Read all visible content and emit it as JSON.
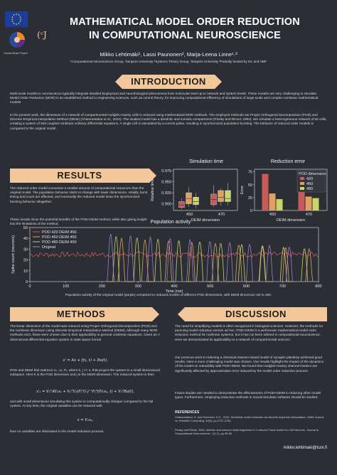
{
  "header": {
    "title_line1": "MATHEMATICAL MODEL ORDER REDUCTION",
    "title_line2": "IN COMPUTATIONAL NEUROSCIENCE",
    "authors": "Mikko Lehtimäki¹, Lassi Paunonen², Marja-Leena Linne¹˒³",
    "affiliations": "¹Computational Neuroscience Group, Tampere University ²Systems Theory Group, Tampere University ³Partially funded by EC and HBP",
    "hbp_logo_text": "Human Brain Project",
    "logo_mark": "(ᶜJ"
  },
  "introduction": {
    "heading": "INTRODUCTION",
    "p1": "Multi-scale models in neuroscience typically integrate detailed biophysical and neurobiological phenomena from molecular level up to network and system levels. These models are very challenging to simulate. Model Order Reduction (MOR) is an established method in engineering sciences, such as control theory, for improving computational efficiency of simulations of large-scale and complex nonlinear mathematical models.",
    "p2": "In the present work, the dimension of a network of compartmental Hodgkin-Huxley cells is reduced using mathematical MOR methods. The employed methods are Proper Orthogonal Decomposition (POD) and Discrete Empirical Interpolation Method (DEIM) (Chaturantabut et al., 2010). The studied model has a dendritic and somatic compartment (Pinsky and Rinzel, 1994). We simulate a heterogeneous network of 50 cells, creating a system of 500 coupled nonlinear ordinary differential equations. A single cell is stimulated by a current pulse, resulting in synchronized population bursting. The behavior of reduced order models is compared to the original model."
  },
  "results": {
    "heading": "RESULTS",
    "p1": "The reduced order model consumes a smaller amount of computational resources than the original model. The population behavior starts to change with lower dimensions. Initially, burst timing and count are affected, and eventually the reduced model loses the synchronized bursting behavior altogether.",
    "p2": "These results show the potential benefits of the POD+DEIM method, while also giving insight into the limitations of the method.",
    "caption": "Population activity of the original model (purple) compared to reduced models of different POD dimensions, with DEIM dimension set to 450."
  },
  "chart_data": [
    {
      "type": "box",
      "title": "Simulation time",
      "ylabel": "Relative time",
      "xlabel": "DEIM dimension",
      "categories": [
        "450",
        "470"
      ],
      "ylim": [
        0.885,
        0.978
      ],
      "yticks": [
        0.9,
        0.925,
        0.95,
        0.975
      ],
      "series": [
        {
          "name": "420",
          "color": "#c85a5a",
          "boxes": [
            {
              "q1": 0.892,
              "med": 0.897,
              "q3": 0.905,
              "min": 0.888,
              "max": 0.913
            },
            {
              "q1": 0.898,
              "med": 0.91,
              "q3": 0.922,
              "min": 0.893,
              "max": 0.942
            }
          ]
        },
        {
          "name": "460",
          "color": "#e0a060",
          "boxes": [
            {
              "q1": 0.9,
              "med": 0.912,
              "q3": 0.925,
              "min": 0.893,
              "max": 0.937
            },
            {
              "q1": 0.905,
              "med": 0.915,
              "q3": 0.93,
              "min": 0.896,
              "max": 0.935
            }
          ]
        },
        {
          "name": "480",
          "color": "#c9d46a",
          "boxes": [
            {
              "q1": 0.898,
              "med": 0.905,
              "q3": 0.915,
              "min": 0.89,
              "max": 0.925
            },
            {
              "q1": 0.905,
              "med": 0.912,
              "q3": 0.93,
              "min": 0.897,
              "max": 0.947
            }
          ]
        }
      ]
    },
    {
      "type": "bar",
      "title": "Reduction error",
      "ylabel": "Error",
      "xlabel": "DEIM dimension",
      "categories": [
        "450",
        "470"
      ],
      "ylim": [
        0,
        80
      ],
      "yticks": [
        0,
        25,
        50,
        75
      ],
      "legend_title": "POD dimension",
      "legend_position": "top-right",
      "series": [
        {
          "name": "420",
          "color": "#c85a5a",
          "values": [
            71,
            68
          ]
        },
        {
          "name": "460",
          "color": "#e0a060",
          "values": [
            33,
            27
          ]
        },
        {
          "name": "480",
          "color": "#c9d46a",
          "values": [
            22,
            24
          ]
        }
      ]
    },
    {
      "type": "line",
      "title": "Population activity",
      "xlabel": "Time (ms)",
      "ylabel": "Spike count (neurons)",
      "xlim": [
        0,
        800
      ],
      "ylim": [
        0,
        50
      ],
      "xticks": [
        0,
        100,
        200,
        300,
        400,
        500,
        600,
        700,
        800
      ],
      "yticks": [
        0,
        10,
        20,
        30,
        40,
        50
      ],
      "legend_position": "top-left",
      "series": [
        {
          "name": "POD 420 DEIM 450",
          "color": "#c85a5a"
        },
        {
          "name": "POD 460 DEIM 450",
          "color": "#e0a060"
        },
        {
          "name": "POD 480 DEIM 450",
          "color": "#c9d46a"
        },
        {
          "name": "Original",
          "color": "#9a7fc9"
        }
      ]
    }
  ],
  "methods": {
    "heading": "METHODS",
    "p1": "The linear dimension of the model was reduced using Proper Orthogonal Decomposition (POD) and the nonlinear dimension using Discrete Empirical Interpolation Method (DEIM). Although many MOR methods exist, these were chosen due to their applicability to general nonlinear equations. Given an n dimensional differential equation system in state space format",
    "eq1": "x' = Ax + f(x, t) + Bu(t),",
    "p2": "POD and DEIM find matrices Vₖ, Uⱼ, Pⱼ, where k, j << n, that project the system to a small dimensional subspace. Here k is the POD dimension and j is the DEIM dimension. The reduced system is then",
    "eq2": "x'ₖ = VₖᵀAVₖxₖ + VₖᵀUⱼ(PⱼᵀUⱼ)⁻¹Pⱼᵀf(Vₖxₖ, t) + VₖᵀBu(t),",
    "p3": "and with small dimensions simulating this system is computationally cheaper compared to the full system. At any time, the original variables can be restored with",
    "eq3": "x = Vₖxₖ,",
    "p4": "thus no variables are eliminated in the model reduction process."
  },
  "discussion": {
    "heading": "DISCUSSION",
    "p1": "The need for simplifying models is often recognized in biological sciences. However, the methods for pursuing model reduction remain ad hoc. POD+DEIM is a well known mathematical model order reduction method for nonlinear systems, but it has not been utilized in computational neuroscience. Here we demonstrated its applicability to a network of compartmental neurons.",
    "p2": "Our previous work in reducing a chemical reaction based model of synaptic plasticity achieved good results. Here a more challenging model was chosen. Our results highlight the impact of the dynamics of the model on reducibility with POD+DEIM. We found that Hodgkin-Huxley channel kinetics are significantly affected by approximation error induced by the model order reduction process.",
    "p3": "Future studies are needed to demonstrate the effectiveness of POD+DEIM in reducing other model types. Furthermore, employing reduction methods in neural simulator software should be studied.",
    "ref_heading": "REFERENCES",
    "ref1": "Chaturantabut, S. and Sorensen, D.C., 2010. Nonlinear model reduction via discrete empirical interpolation. SIAM Journal on Scientific Computing, 32(5), pp.2737-2764.",
    "ref2": "Pinsky and Rinzel, 1994. Intrinsic and network rhythmogenesis in a reduced Traub model for Ca3 Neurons. Journal of Computational Neuroscience, 1(1-2), pp.39-60",
    "email": "mikko.lehtimaki@tuni.fi"
  }
}
